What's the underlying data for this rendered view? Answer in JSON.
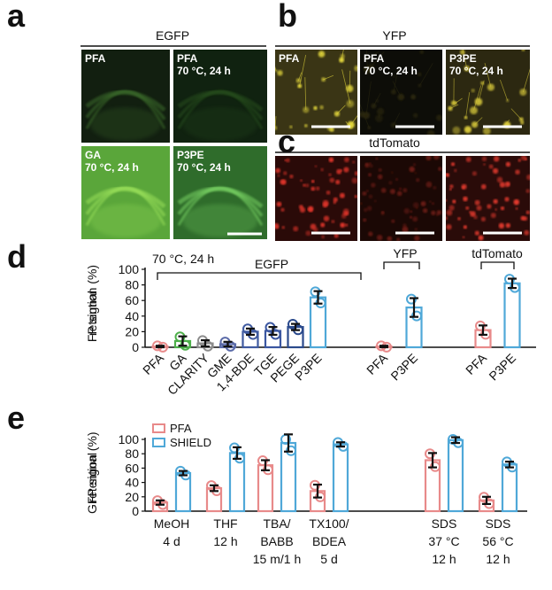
{
  "panels": {
    "a": {
      "letter": "a",
      "title": "EGFP",
      "images": [
        {
          "label": [
            "PFA"
          ],
          "color": "#121f10",
          "signal": "#3b6a2a"
        },
        {
          "label": [
            "PFA",
            "70 °C, 24 h"
          ],
          "color": "#102210",
          "signal": "#264d1f"
        },
        {
          "label": [
            "GA",
            "70 °C, 24 h"
          ],
          "color": "#5aa63a",
          "signal": "#9ae05a"
        },
        {
          "label": [
            "P3PE",
            "70 °C, 24 h"
          ],
          "color": "#2f6c2b",
          "signal": "#78d263"
        }
      ]
    },
    "b": {
      "letter": "b",
      "title": "YFP",
      "images": [
        {
          "label": [
            "PFA"
          ],
          "color": "#3a3515",
          "signal": "#e8dc3c"
        },
        {
          "label": [
            "PFA",
            "70 °C, 24 h"
          ],
          "color": "#0d0d08",
          "signal": "#2a2810"
        },
        {
          "label": [
            "P3PE",
            "70 °C, 24 h"
          ],
          "color": "#2c2811",
          "signal": "#d7c83a"
        }
      ]
    },
    "c": {
      "letter": "c",
      "title": "tdTomato",
      "images": [
        {
          "color": "#2a0a08",
          "signal": "#e0362a"
        },
        {
          "color": "#1b0805",
          "signal": "#6b1a12"
        },
        {
          "color": "#2a0b09",
          "signal": "#e53a2e"
        }
      ]
    },
    "d": {
      "letter": "d"
    },
    "e": {
      "letter": "e"
    }
  },
  "colors": {
    "pfa": "#e88a8a",
    "shield": "#4fa8d8",
    "pfa_dark": "#d86a6a",
    "green": "#4daf4a",
    "gray": "#8c8c8c",
    "navy": "#2b4a8c",
    "error": "#111111"
  },
  "chart_data": [
    {
      "type": "bar",
      "panel": "d",
      "title": "",
      "ylabel": "FP signal retention (%)",
      "ylim": [
        0,
        100
      ],
      "yticks": [
        "0",
        "20",
        "40",
        "60",
        "80",
        "100"
      ],
      "annotation": "70 °C, 24 h",
      "groups": [
        {
          "label": "EGFP",
          "categories": [
            "PFA",
            "GA",
            "CLARITY",
            "GME",
            "1,4-BDE",
            "TGE",
            "PEGE",
            "P3PE"
          ],
          "values": [
            1,
            8,
            5,
            4,
            20,
            21,
            26,
            64
          ],
          "errors": [
            1,
            6,
            4,
            3,
            4,
            5,
            4,
            8
          ],
          "colors": [
            "#e88a8a",
            "#4daf4a",
            "#8c8c8c",
            "#5a6aa8",
            "#3f5aa0",
            "#3a56a0",
            "#2b4a8c",
            "#4fa8d8"
          ]
        },
        {
          "label": "YFP",
          "categories": [
            "PFA",
            "P3PE"
          ],
          "values": [
            1,
            51
          ],
          "errors": [
            1,
            12
          ],
          "colors": [
            "#e88a8a",
            "#4fa8d8"
          ]
        },
        {
          "label": "tdTomato",
          "categories": [
            "PFA",
            "P3PE"
          ],
          "values": [
            22,
            82
          ],
          "errors": [
            6,
            6
          ],
          "colors": [
            "#e88a8a",
            "#4fa8d8"
          ]
        }
      ]
    },
    {
      "type": "bar",
      "panel": "e",
      "title": "",
      "ylabel": "GFP signal retention (%)",
      "ylim": [
        0,
        100
      ],
      "yticks": [
        "0",
        "20",
        "40",
        "60",
        "80",
        "100"
      ],
      "legend": "top-left",
      "categories": [
        [
          "MeOH",
          "4 d"
        ],
        [
          "THF",
          "12 h"
        ],
        [
          "TBA/",
          "BABB",
          "15 m/1 h"
        ],
        [
          "TX100/",
          "BDEA",
          "5 d"
        ],
        [
          "SDS",
          "37 °C",
          "12 h"
        ],
        [
          "SDS",
          "56 °C",
          "12 h"
        ]
      ],
      "series": [
        {
          "name": "PFA",
          "values": [
            12,
            32,
            64,
            28,
            71,
            15
          ],
          "errors": [
            3,
            4,
            7,
            9,
            10,
            5
          ]
        },
        {
          "name": "SHIELD",
          "values": [
            53,
            81,
            95,
            93,
            99,
            65
          ],
          "errors": [
            3,
            8,
            12,
            3,
            4,
            4
          ]
        }
      ]
    }
  ]
}
